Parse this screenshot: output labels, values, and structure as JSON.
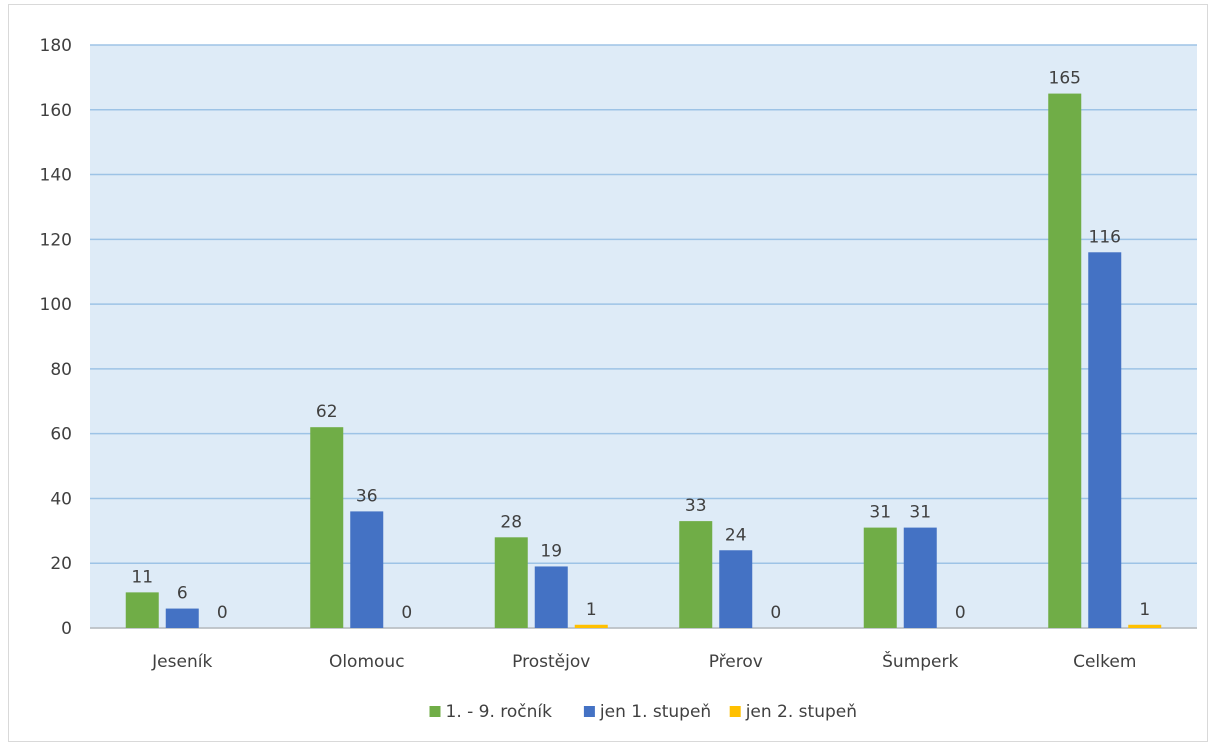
{
  "chart_data": {
    "type": "bar",
    "title": "",
    "xlabel": "",
    "ylabel": "",
    "categories": [
      "Jeseník",
      "Olomouc",
      "Prostějov",
      "Přerov",
      "Šumperk",
      "Celkem"
    ],
    "series": [
      {
        "name": "1. - 9. ročník",
        "color": "#70ad47",
        "values": [
          11,
          62,
          28,
          33,
          31,
          165
        ]
      },
      {
        "name": "jen 1. stupeň",
        "color": "#4472c4",
        "values": [
          6,
          36,
          19,
          24,
          31,
          116
        ]
      },
      {
        "name": "jen 2. stupeň",
        "color": "#ffc000",
        "values": [
          0,
          0,
          1,
          0,
          0,
          1
        ]
      }
    ],
    "ylim": [
      0,
      180
    ],
    "yticks": [
      0,
      20,
      40,
      60,
      80,
      100,
      120,
      140,
      160,
      180
    ],
    "grid": true,
    "legend_position": "bottom",
    "data_labels": true,
    "plot_background": "#deebf7",
    "gridline_color": "#9dc3e6"
  }
}
